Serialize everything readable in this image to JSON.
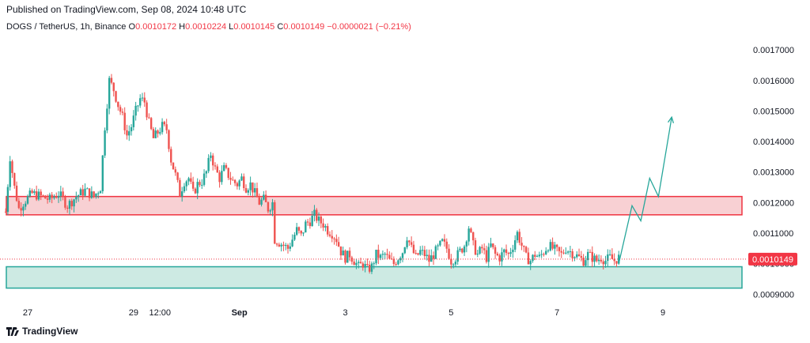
{
  "header": {
    "published": "Published on TradingView.com, Sep 08, 2024 10:48 UTC"
  },
  "legend": {
    "symbol": "DOGS / TetherUS, 1h, Binance",
    "open_label": "O",
    "open": "0.0010172",
    "high_label": "H",
    "high": "0.0010224",
    "low_label": "L",
    "low": "0.0010145",
    "close_label": "C",
    "close": "0.0010149",
    "change": "−0.0000021 (−0.21%)"
  },
  "colors": {
    "up": "#26a69a",
    "down": "#ef5350",
    "resistance_fill": "#f8d0d3",
    "resistance_border": "#ef3340",
    "support_fill": "#cdeae3",
    "support_border": "#26a69a",
    "projection": "#26a69a",
    "price_label_bg": "#f23645"
  },
  "chart_data": {
    "type": "candlestick",
    "symbol": "DOGS / TetherUS",
    "interval": "1h",
    "exchange": "Binance",
    "y_ticks": [
      "0.0017000",
      "0.0016000",
      "0.0015000",
      "0.0014000",
      "0.0013000",
      "0.0012000",
      "0.0011000",
      "0.0010000",
      "0.0009000"
    ],
    "y_tick_values": [
      0.0017,
      0.0016,
      0.0015,
      0.0014,
      0.0013,
      0.0012,
      0.0011,
      0.001,
      0.0009
    ],
    "ylim": [
      0.00088,
      0.00176
    ],
    "x_ticks": [
      "27",
      "29",
      "12:00",
      "Sep",
      "3",
      "5",
      "7",
      "9"
    ],
    "x_tick_hours": [
      0,
      48,
      60,
      96,
      144,
      192,
      240,
      288
    ],
    "current_price_label": "0.0010149",
    "current_price": 0.0010149,
    "resistance_zone": [
      0.00116,
      0.00122
    ],
    "support_zone": [
      0.00092,
      0.00099
    ],
    "price_path": [
      [
        -10,
        0.00117
      ],
      [
        -8,
        0.00135
      ],
      [
        -6,
        0.00125
      ],
      [
        -4,
        0.00118
      ],
      [
        -2,
        0.0012
      ],
      [
        2,
        0.00123
      ],
      [
        6,
        0.00122
      ],
      [
        10,
        0.00121
      ],
      [
        14,
        0.00123
      ],
      [
        18,
        0.00119
      ],
      [
        22,
        0.00122
      ],
      [
        26,
        0.00124
      ],
      [
        30,
        0.00122
      ],
      [
        33,
        0.00125
      ],
      [
        35,
        0.00145
      ],
      [
        37,
        0.0016
      ],
      [
        39,
        0.00157
      ],
      [
        41,
        0.00152
      ],
      [
        43,
        0.00148
      ],
      [
        45,
        0.00142
      ],
      [
        47,
        0.00145
      ],
      [
        49,
        0.0015
      ],
      [
        51,
        0.00154
      ],
      [
        53,
        0.00153
      ],
      [
        55,
        0.00146
      ],
      [
        57,
        0.00141
      ],
      [
        59,
        0.00143
      ],
      [
        61,
        0.00145
      ],
      [
        63,
        0.00144
      ],
      [
        65,
        0.00134
      ],
      [
        67,
        0.00129
      ],
      [
        69,
        0.00123
      ],
      [
        71,
        0.00127
      ],
      [
        73,
        0.00128
      ],
      [
        75,
        0.00123
      ],
      [
        77,
        0.00126
      ],
      [
        79,
        0.00127
      ],
      [
        81,
        0.0013
      ],
      [
        83,
        0.00136
      ],
      [
        85,
        0.00131
      ],
      [
        87,
        0.00128
      ],
      [
        89,
        0.00131
      ],
      [
        91,
        0.00129
      ],
      [
        93,
        0.00127
      ],
      [
        95,
        0.00126
      ],
      [
        97,
        0.00128
      ],
      [
        99,
        0.00125
      ],
      [
        101,
        0.00126
      ],
      [
        103,
        0.00123
      ],
      [
        105,
        0.0012
      ],
      [
        107,
        0.00121
      ],
      [
        109,
        0.00118
      ],
      [
        111,
        0.0012
      ],
      [
        112,
        0.00108
      ],
      [
        114,
        0.00107
      ],
      [
        116,
        0.00106
      ],
      [
        118,
        0.00105
      ],
      [
        120,
        0.00108
      ],
      [
        122,
        0.00111
      ],
      [
        124,
        0.00109
      ],
      [
        126,
        0.00113
      ],
      [
        128,
        0.00114
      ],
      [
        130,
        0.00116
      ],
      [
        132,
        0.00114
      ],
      [
        134,
        0.00113
      ],
      [
        136,
        0.00111
      ],
      [
        138,
        0.0011
      ],
      [
        140,
        0.00108
      ],
      [
        142,
        0.00104
      ],
      [
        144,
        0.00102
      ],
      [
        146,
        0.00103
      ],
      [
        148,
        0.00101
      ],
      [
        150,
        0.00099
      ],
      [
        152,
        0.001
      ],
      [
        154,
        0.00098
      ],
      [
        156,
        0.00099
      ],
      [
        158,
        0.00103
      ],
      [
        160,
        0.00102
      ],
      [
        162,
        0.00103
      ],
      [
        164,
        0.00101
      ],
      [
        166,
        0.001
      ],
      [
        168,
        0.00102
      ],
      [
        170,
        0.00104
      ],
      [
        172,
        0.00109
      ],
      [
        174,
        0.00105
      ],
      [
        176,
        0.00102
      ],
      [
        178,
        0.00104
      ],
      [
        180,
        0.00103
      ],
      [
        182,
        0.00101
      ],
      [
        184,
        0.00103
      ],
      [
        186,
        0.00105
      ],
      [
        188,
        0.00107
      ],
      [
        190,
        0.00105
      ],
      [
        192,
        0.00101
      ],
      [
        194,
        0.00102
      ],
      [
        196,
        0.00104
      ],
      [
        198,
        0.00106
      ],
      [
        200,
        0.00112
      ],
      [
        202,
        0.00106
      ],
      [
        204,
        0.00103
      ],
      [
        206,
        0.00105
      ],
      [
        208,
        0.00102
      ],
      [
        210,
        0.00106
      ],
      [
        212,
        0.00103
      ],
      [
        214,
        0.00102
      ],
      [
        216,
        0.00104
      ],
      [
        218,
        0.00103
      ],
      [
        220,
        0.00106
      ],
      [
        222,
        0.0011
      ],
      [
        224,
        0.00106
      ],
      [
        226,
        0.00102
      ],
      [
        228,
        0.00101
      ],
      [
        230,
        0.00103
      ],
      [
        232,
        0.00102
      ],
      [
        234,
        0.00104
      ],
      [
        236,
        0.00106
      ],
      [
        238,
        0.00105
      ],
      [
        240,
        0.00104
      ],
      [
        242,
        0.00103
      ],
      [
        244,
        0.00105
      ],
      [
        246,
        0.00104
      ],
      [
        248,
        0.00103
      ],
      [
        250,
        0.00102
      ],
      [
        252,
        0.00101
      ],
      [
        254,
        0.00103
      ],
      [
        256,
        0.00102
      ],
      [
        258,
        0.00101
      ],
      [
        260,
        0.00102
      ],
      [
        262,
        0.00101
      ],
      [
        264,
        0.00102
      ],
      [
        266,
        0.00101
      ],
      [
        268,
        0.00102
      ]
    ],
    "projection_path": [
      [
        268,
        0.001
      ],
      [
        274,
        0.00119
      ],
      [
        278,
        0.00114
      ],
      [
        282,
        0.00128
      ],
      [
        286,
        0.00122
      ],
      [
        292,
        0.00148
      ]
    ]
  }
}
